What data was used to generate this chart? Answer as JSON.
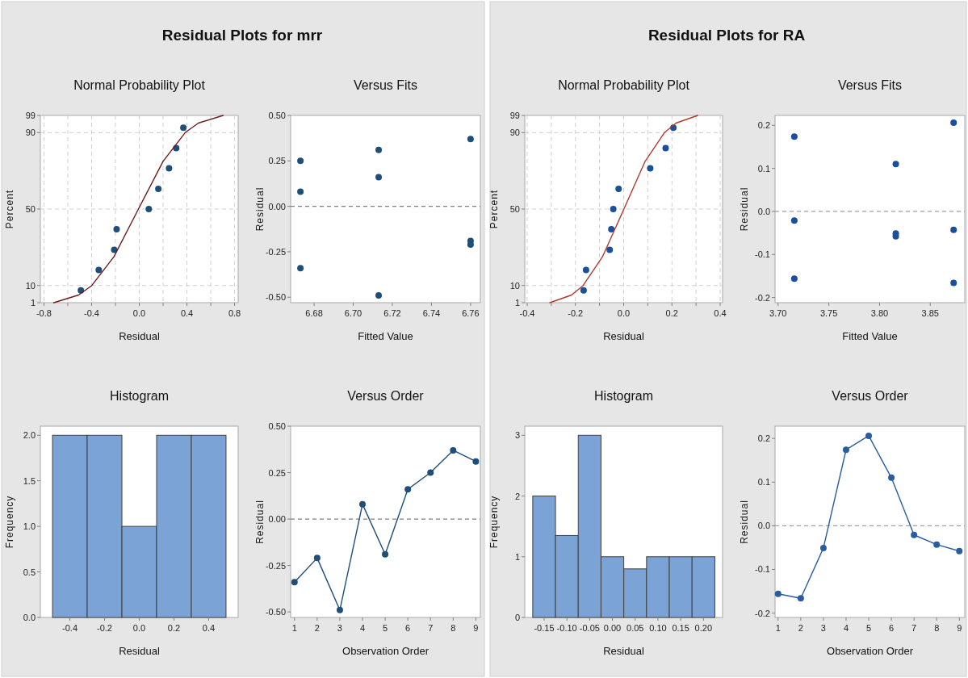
{
  "chart_data": [
    {
      "type": "scatter",
      "title": "Normal Probability Plot",
      "xlabel": "Residual",
      "ylabel": "Percent",
      "annotations": [
        "Residual Plots for mrr"
      ],
      "xlim": [
        -0.83,
        0.83
      ],
      "xticks": [
        {
          "value": -0.8,
          "label": "-0.8"
        },
        {
          "value": -0.6,
          "label": null
        },
        {
          "value": -0.4,
          "label": "-0.4"
        },
        {
          "value": -0.2,
          "label": null
        },
        {
          "value": 0,
          "label": "0.0"
        },
        {
          "value": 0.2,
          "label": null
        },
        {
          "value": 0.4,
          "label": "0.4"
        },
        {
          "value": 0.6,
          "label": null
        },
        {
          "value": 0.8,
          "label": "0.8"
        }
      ],
      "ylim": [
        1,
        99
      ],
      "yticks": [
        1,
        10,
        50,
        90,
        99
      ],
      "grid": true,
      "series": [
        {
          "type": "scatter",
          "color": "#1f4e79",
          "x": [
            -0.49,
            -0.34,
            -0.21,
            -0.19,
            0.08,
            0.16,
            0.25,
            0.31,
            0.37
          ],
          "values": [
            7.4,
            18.1,
            28.7,
            39.4,
            50,
            60.6,
            71.3,
            81.9,
            92.6
          ]
        },
        {
          "type": "line",
          "color": "#6b1d1d",
          "x": [
            -0.717,
            -0.509,
            -0.398,
            -0.213,
            -0.007,
            0.2,
            0.385,
            0.496,
            0.704
          ],
          "values": [
            1,
            5,
            10,
            25,
            50,
            75,
            90,
            95,
            99
          ]
        }
      ]
    },
    {
      "type": "scatter",
      "title": "Versus Fits",
      "xlabel": "Fitted Value",
      "ylabel": "Residual",
      "xlim": [
        6.668,
        6.765
      ],
      "xticks": [
        {
          "value": 6.68,
          "label": "6.68"
        },
        {
          "value": 6.7,
          "label": "6.70"
        },
        {
          "value": 6.72,
          "label": "6.72"
        },
        {
          "value": 6.74,
          "label": "6.74"
        },
        {
          "value": 6.76,
          "label": "6.76"
        }
      ],
      "ylim": [
        -0.53,
        0.5
      ],
      "yticks": [
        {
          "value": -0.5,
          "label": "-0.50"
        },
        {
          "value": -0.25,
          "label": "-0.25"
        },
        {
          "value": 0,
          "label": "0.00"
        },
        {
          "value": 0.25,
          "label": "0.25"
        },
        {
          "value": 0.5,
          "label": "0.50"
        }
      ],
      "ref_lines": [
        {
          "axis": "y",
          "value": 0,
          "color": "#808080",
          "line_style": "dashed"
        }
      ],
      "series": [
        {
          "type": "scatter",
          "color": "#1f4e79",
          "x": [
            6.673,
            6.673,
            6.673,
            6.713,
            6.713,
            6.713,
            6.76,
            6.76,
            6.76
          ],
          "values": [
            0.25,
            0.08,
            -0.34,
            0.31,
            0.16,
            -0.49,
            0.37,
            -0.19,
            -0.21
          ]
        }
      ]
    },
    {
      "type": "histogram",
      "title": "Histogram",
      "xlabel": "Residual",
      "ylabel": "Frequency",
      "color": "#7ba3d6",
      "bins": [
        -0.5,
        -0.3,
        -0.1,
        0.1,
        0.3,
        0.5
      ],
      "values": [
        2,
        2,
        1,
        2,
        2
      ],
      "xlim": [
        -0.57,
        0.57
      ],
      "xticks": [
        {
          "value": -0.4,
          "label": "-0.4"
        },
        {
          "value": -0.2,
          "label": "-0.2"
        },
        {
          "value": 0,
          "label": "0.0"
        },
        {
          "value": 0.2,
          "label": "0.2"
        },
        {
          "value": 0.4,
          "label": "0.4"
        }
      ],
      "ylim": [
        0,
        2.1
      ],
      "yticks": [
        {
          "value": 0,
          "label": "0.0"
        },
        {
          "value": 0.5,
          "label": "0.5"
        },
        {
          "value": 1,
          "label": "1.0"
        },
        {
          "value": 1.5,
          "label": "1.5"
        },
        {
          "value": 2,
          "label": "2.0"
        }
      ]
    },
    {
      "type": "line",
      "title": "Versus Order",
      "xlabel": "Observation Order",
      "ylabel": "Residual",
      "marker": "circle",
      "xlim": [
        0.83,
        9.2
      ],
      "xticks": [
        1,
        2,
        3,
        4,
        5,
        6,
        7,
        8,
        9
      ],
      "ylim": [
        -0.53,
        0.5
      ],
      "yticks": [
        {
          "value": -0.5,
          "label": "-0.50"
        },
        {
          "value": -0.25,
          "label": "-0.25"
        },
        {
          "value": 0,
          "label": "0.00"
        },
        {
          "value": 0.25,
          "label": "0.25"
        },
        {
          "value": 0.5,
          "label": "0.50"
        }
      ],
      "ref_lines": [
        {
          "axis": "y",
          "value": 0,
          "color": "#808080",
          "line_style": "dashed"
        }
      ],
      "series": [
        {
          "color": "#1f4e79",
          "x": [
            1,
            2,
            3,
            4,
            5,
            6,
            7,
            8,
            9
          ],
          "values": [
            -0.34,
            -0.21,
            -0.49,
            0.08,
            -0.19,
            0.16,
            0.25,
            0.37,
            0.31
          ]
        }
      ]
    },
    {
      "type": "scatter",
      "title": "Normal Probability Plot",
      "xlabel": "Residual",
      "ylabel": "Percent",
      "annotations": [
        "Residual Plots for RA"
      ],
      "xlim": [
        -0.41,
        0.41
      ],
      "xticks": [
        {
          "value": -0.4,
          "label": "-0.4"
        },
        {
          "value": -0.3,
          "label": null
        },
        {
          "value": -0.2,
          "label": "-0.2"
        },
        {
          "value": -0.1,
          "label": null
        },
        {
          "value": 0,
          "label": "0.0"
        },
        {
          "value": 0.1,
          "label": null
        },
        {
          "value": 0.2,
          "label": "0.2"
        },
        {
          "value": 0.3,
          "label": null
        },
        {
          "value": 0.4,
          "label": "0.4"
        }
      ],
      "ylim": [
        1,
        99
      ],
      "yticks": [
        1,
        10,
        50,
        90,
        99
      ],
      "grid": true,
      "series": [
        {
          "type": "scatter",
          "color": "#1a4f9a",
          "x": [
            -0.166,
            -0.156,
            -0.058,
            -0.051,
            -0.043,
            -0.021,
            0.11,
            0.174,
            0.206
          ],
          "values": [
            7.4,
            18.1,
            28.7,
            39.4,
            50,
            60.6,
            71.3,
            81.9,
            92.6
          ]
        },
        {
          "type": "line",
          "color": "#b03a2e",
          "x": [
            -0.306,
            -0.216,
            -0.168,
            -0.088,
            0.001,
            0.089,
            0.169,
            0.217,
            0.307
          ],
          "values": [
            1,
            5,
            10,
            25,
            50,
            75,
            90,
            95,
            99
          ]
        }
      ]
    },
    {
      "type": "scatter",
      "title": "Versus Fits",
      "xlabel": "Fitted Value",
      "ylabel": "Residual",
      "xlim": [
        3.697,
        3.884
      ],
      "xticks": [
        {
          "value": 3.7,
          "label": "3.70"
        },
        {
          "value": 3.75,
          "label": "3.75"
        },
        {
          "value": 3.8,
          "label": "3.80"
        },
        {
          "value": 3.85,
          "label": "3.85"
        }
      ],
      "ylim": [
        -0.212,
        0.223
      ],
      "yticks": [
        {
          "value": -0.2,
          "label": "-0.2"
        },
        {
          "value": -0.1,
          "label": "-0.1"
        },
        {
          "value": 0,
          "label": "0.0"
        },
        {
          "value": 0.1,
          "label": "0.1"
        },
        {
          "value": 0.2,
          "label": "0.2"
        }
      ],
      "ref_lines": [
        {
          "axis": "y",
          "value": 0,
          "color": "#a0a0a0",
          "line_style": "dashed"
        }
      ],
      "series": [
        {
          "type": "scatter",
          "color": "#1a4f9a",
          "x": [
            3.716,
            3.716,
            3.716,
            3.816,
            3.816,
            3.816,
            3.873,
            3.873,
            3.873
          ],
          "values": [
            0.174,
            -0.021,
            -0.156,
            0.11,
            -0.051,
            -0.058,
            0.206,
            -0.043,
            -0.166
          ]
        }
      ]
    },
    {
      "type": "histogram",
      "title": "Histogram",
      "xlabel": "Residual",
      "ylabel": "Frequency",
      "color": "#7ba3d6",
      "bins": [
        -0.175,
        -0.125,
        -0.075,
        -0.025,
        0.025,
        0.075,
        0.125,
        0.175,
        0.225
      ],
      "values": [
        2,
        1.35,
        3,
        1,
        0.8,
        1,
        1,
        1
      ],
      "xlim": [
        -0.1925,
        0.242
      ],
      "xticks": [
        {
          "value": -0.15,
          "label": "-0.15"
        },
        {
          "value": -0.1,
          "label": "-0.10"
        },
        {
          "value": -0.05,
          "label": "-0.05"
        },
        {
          "value": 0,
          "label": "0.00"
        },
        {
          "value": 0.05,
          "label": "0.05"
        },
        {
          "value": 0.1,
          "label": "0.10"
        },
        {
          "value": 0.15,
          "label": "0.15"
        },
        {
          "value": 0.2,
          "label": "0.20"
        }
      ],
      "ylim": [
        0,
        3.15
      ],
      "yticks": [
        0,
        1,
        2,
        3
      ]
    },
    {
      "type": "line",
      "title": "Versus Order",
      "xlabel": "Observation Order",
      "ylabel": "Residual",
      "marker": "circle",
      "xlim": [
        0.865,
        9.24
      ],
      "xticks": [
        1,
        2,
        3,
        4,
        5,
        6,
        7,
        8,
        9
      ],
      "ylim": [
        -0.21,
        0.228
      ],
      "yticks": [
        {
          "value": -0.2,
          "label": "-0.2"
        },
        {
          "value": -0.1,
          "label": "-0.1"
        },
        {
          "value": 0,
          "label": "0.0"
        },
        {
          "value": 0.1,
          "label": "0.1"
        },
        {
          "value": 0.2,
          "label": "0.2"
        }
      ],
      "ref_lines": [
        {
          "axis": "y",
          "value": 0,
          "color": "#a0a0a0",
          "line_style": "dashed"
        }
      ],
      "series": [
        {
          "color": "#2a5d9f",
          "x": [
            1,
            2,
            3,
            4,
            5,
            6,
            7,
            8,
            9
          ],
          "values": [
            -0.156,
            -0.166,
            -0.051,
            0.174,
            0.206,
            0.11,
            -0.021,
            -0.043,
            -0.058
          ]
        }
      ]
    }
  ]
}
